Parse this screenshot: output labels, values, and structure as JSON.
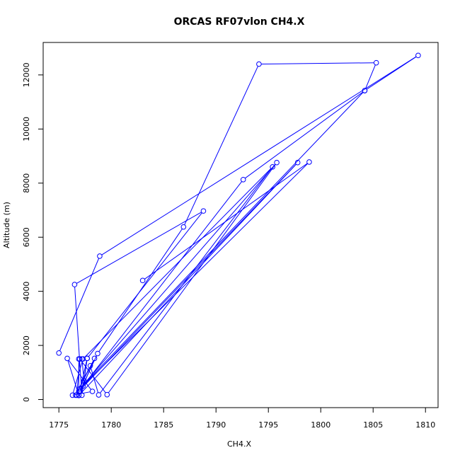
{
  "chart_data": {
    "type": "line",
    "title": "ORCAS RF07vlon CH4.X",
    "xlabel": "CH4.X",
    "ylabel": "Altitude (m)",
    "xlim": [
      1773.5,
      1811.2
    ],
    "ylim": [
      -300,
      13200
    ],
    "xticks": [
      1775,
      1780,
      1785,
      1790,
      1795,
      1800,
      1805,
      1810
    ],
    "yticks": [
      0,
      2000,
      4000,
      6000,
      8000,
      10000,
      12000
    ],
    "grid": false,
    "series": [
      {
        "color": "#0000ff",
        "marker": "open-circle",
        "points": [
          [
            1775.0,
            1720
          ],
          [
            1778.9,
            5300
          ],
          [
            1809.3,
            12720
          ],
          [
            1804.2,
            11420
          ],
          [
            1792.6,
            8130
          ],
          [
            1776.9,
            300
          ],
          [
            1797.8,
            8760
          ],
          [
            1776.9,
            150
          ],
          [
            1776.9,
            1500
          ],
          [
            1777.2,
            1500
          ],
          [
            1777.4,
            700
          ],
          [
            1777.7,
            1520
          ],
          [
            1788.8,
            6970
          ],
          [
            1776.5,
            4250
          ],
          [
            1777.2,
            160
          ],
          [
            1777.7,
            1520
          ],
          [
            1777.0,
            300
          ],
          [
            1778.7,
            1700
          ],
          [
            1786.9,
            6380
          ],
          [
            1794.1,
            12400
          ],
          [
            1805.3,
            12450
          ],
          [
            1804.2,
            11420
          ],
          [
            1777.0,
            400
          ],
          [
            1795.8,
            8760
          ],
          [
            1779.6,
            180
          ],
          [
            1777.0,
            1500
          ],
          [
            1776.7,
            160
          ],
          [
            1776.9,
            160
          ],
          [
            1775.8,
            1520
          ],
          [
            1778.2,
            300
          ],
          [
            1776.3,
            160
          ],
          [
            1777.3,
            1500
          ],
          [
            1795.4,
            8600
          ],
          [
            1778.8,
            170
          ],
          [
            1778.0,
            1250
          ],
          [
            1776.6,
            160
          ],
          [
            1778.4,
            1520
          ],
          [
            1777.3,
            500
          ],
          [
            1798.9,
            8780
          ],
          [
            1783.0,
            4400
          ]
        ]
      }
    ]
  }
}
